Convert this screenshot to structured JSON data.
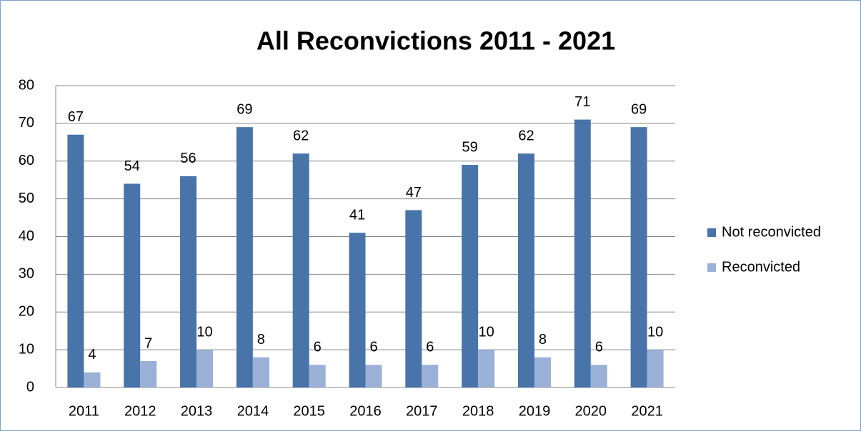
{
  "chart_data": {
    "type": "bar",
    "title": "All Reconvictions 2011 - 2021",
    "categories": [
      "2011",
      "2012",
      "2013",
      "2014",
      "2015",
      "2016",
      "2017",
      "2018",
      "2019",
      "2020",
      "2021"
    ],
    "series": [
      {
        "name": "Not reconvicted",
        "color": "#4874aa",
        "values": [
          67,
          54,
          56,
          69,
          62,
          41,
          47,
          59,
          62,
          71,
          69
        ]
      },
      {
        "name": "Reconvicted",
        "color": "#9bb0d6",
        "values": [
          4,
          7,
          10,
          8,
          6,
          6,
          6,
          10,
          8,
          6,
          10
        ]
      }
    ],
    "ylim": [
      0,
      80
    ],
    "yticks": [
      0,
      10,
      20,
      30,
      40,
      50,
      60,
      70,
      80
    ],
    "grid": true,
    "legend": "right"
  }
}
